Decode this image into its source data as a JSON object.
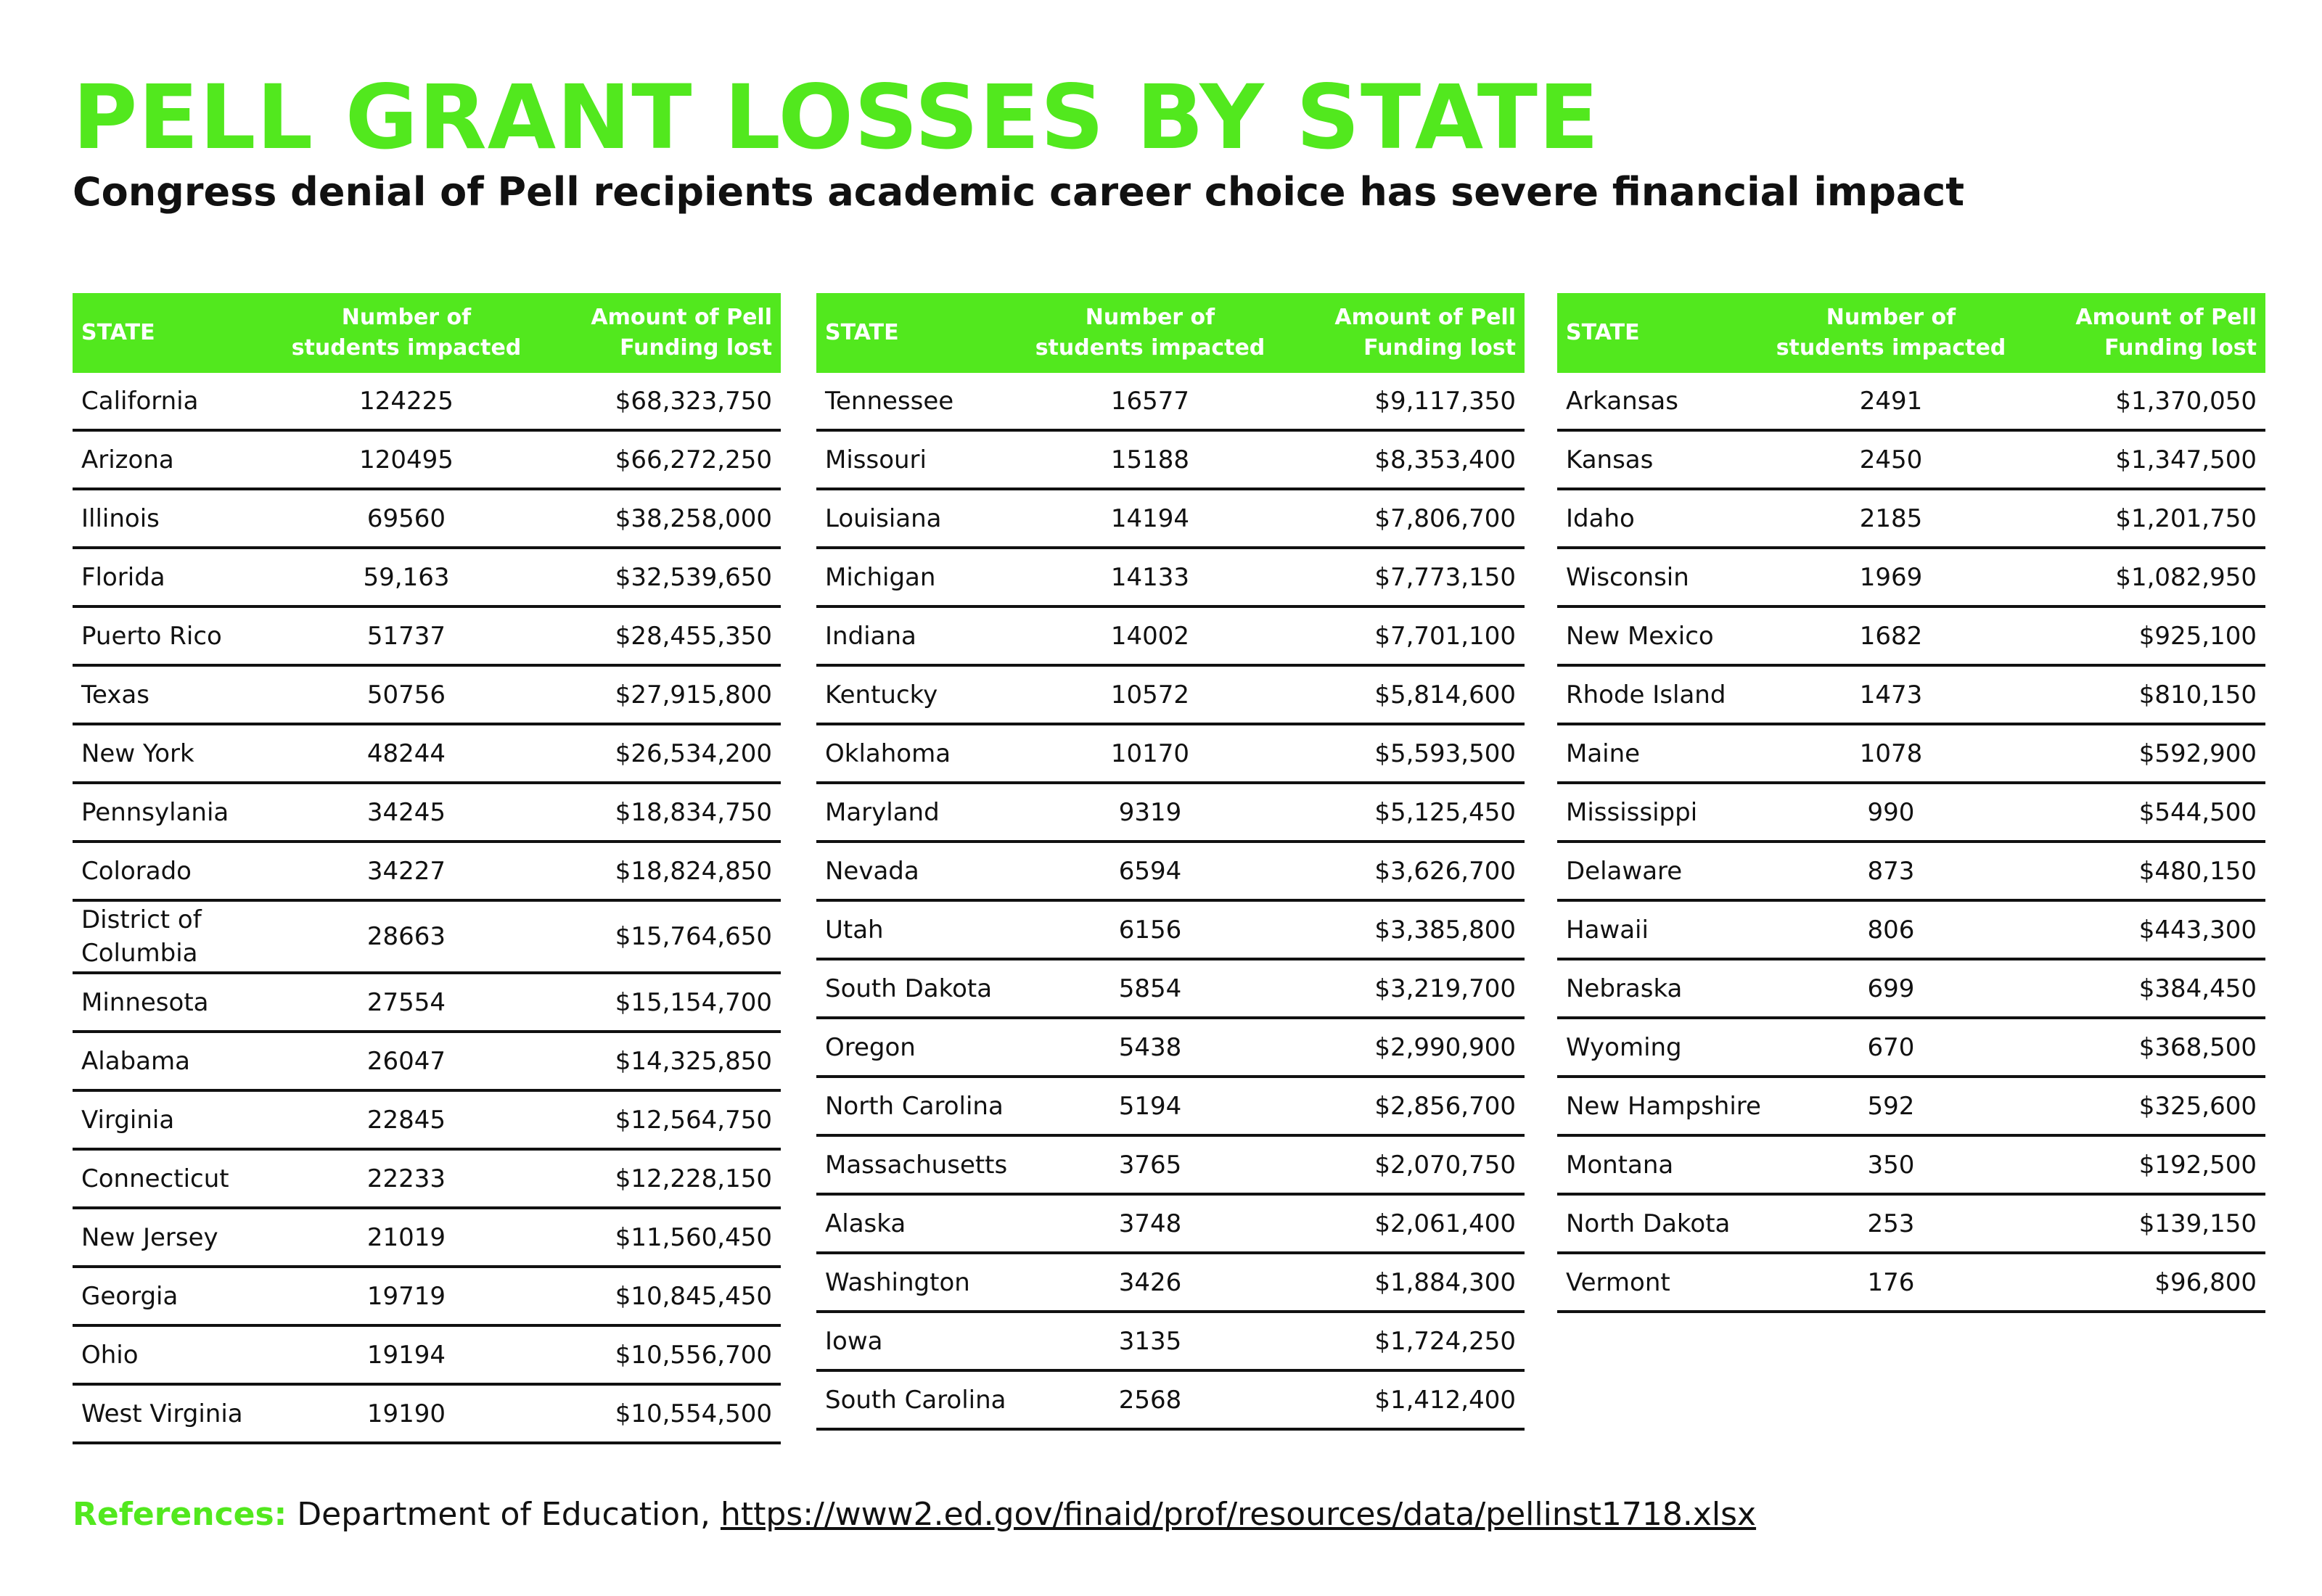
{
  "title": "PELL GRANT LOSSES BY STATE",
  "subtitle": "Congress denial of Pell recipients academic career choice has severe financial impact",
  "colors": {
    "accent": "#52e81e",
    "text": "#111111",
    "background": "#ffffff"
  },
  "table_headers": {
    "state": "STATE",
    "students": "Number of\nstudents impacted",
    "funding": "Amount of Pell\nFunding lost"
  },
  "tables": [
    {
      "rows": [
        {
          "state": "California",
          "students": "124225",
          "funding": "$68,323,750"
        },
        {
          "state": "Arizona",
          "students": "120495",
          "funding": "$66,272,250"
        },
        {
          "state": "Illinois",
          "students": "69560",
          "funding": "$38,258,000"
        },
        {
          "state": "Florida",
          "students": "59,163",
          "funding": "$32,539,650"
        },
        {
          "state": "Puerto Rico",
          "students": "51737",
          "funding": "$28,455,350"
        },
        {
          "state": "Texas",
          "students": "50756",
          "funding": "$27,915,800"
        },
        {
          "state": "New York",
          "students": "48244",
          "funding": "$26,534,200"
        },
        {
          "state": "Pennsylania",
          "students": "34245",
          "funding": "$18,834,750"
        },
        {
          "state": "Colorado",
          "students": "34227",
          "funding": "$18,824,850"
        },
        {
          "state": "District of Columbia",
          "students": "28663",
          "funding": "$15,764,650"
        },
        {
          "state": "Minnesota",
          "students": "27554",
          "funding": "$15,154,700"
        },
        {
          "state": "Alabama",
          "students": "26047",
          "funding": "$14,325,850"
        },
        {
          "state": "Virginia",
          "students": "22845",
          "funding": "$12,564,750"
        },
        {
          "state": "Connecticut",
          "students": "22233",
          "funding": "$12,228,150"
        },
        {
          "state": "New Jersey",
          "students": "21019",
          "funding": "$11,560,450"
        },
        {
          "state": "Georgia",
          "students": "19719",
          "funding": "$10,845,450"
        },
        {
          "state": "Ohio",
          "students": "19194",
          "funding": "$10,556,700"
        },
        {
          "state": "West Virginia",
          "students": "19190",
          "funding": "$10,554,500"
        }
      ]
    },
    {
      "rows": [
        {
          "state": "Tennessee",
          "students": "16577",
          "funding": "$9,117,350"
        },
        {
          "state": "Missouri",
          "students": "15188",
          "funding": "$8,353,400"
        },
        {
          "state": "Louisiana",
          "students": "14194",
          "funding": "$7,806,700"
        },
        {
          "state": "Michigan",
          "students": "14133",
          "funding": "$7,773,150"
        },
        {
          "state": "Indiana",
          "students": "14002",
          "funding": "$7,701,100"
        },
        {
          "state": "Kentucky",
          "students": "10572",
          "funding": "$5,814,600"
        },
        {
          "state": "Oklahoma",
          "students": "10170",
          "funding": "$5,593,500"
        },
        {
          "state": "Maryland",
          "students": "9319",
          "funding": "$5,125,450"
        },
        {
          "state": "Nevada",
          "students": "6594",
          "funding": "$3,626,700"
        },
        {
          "state": "Utah",
          "students": "6156",
          "funding": "$3,385,800"
        },
        {
          "state": "South Dakota",
          "students": "5854",
          "funding": "$3,219,700"
        },
        {
          "state": "Oregon",
          "students": "5438",
          "funding": "$2,990,900"
        },
        {
          "state": "North Carolina",
          "students": "5194",
          "funding": "$2,856,700"
        },
        {
          "state": "Massachusetts",
          "students": "3765",
          "funding": "$2,070,750"
        },
        {
          "state": "Alaska",
          "students": "3748",
          "funding": "$2,061,400"
        },
        {
          "state": "Washington",
          "students": "3426",
          "funding": "$1,884,300"
        },
        {
          "state": "Iowa",
          "students": "3135",
          "funding": "$1,724,250"
        },
        {
          "state": "South Carolina",
          "students": "2568",
          "funding": "$1,412,400"
        }
      ]
    },
    {
      "rows": [
        {
          "state": "Arkansas",
          "students": "2491",
          "funding": "$1,370,050"
        },
        {
          "state": "Kansas",
          "students": "2450",
          "funding": "$1,347,500"
        },
        {
          "state": "Idaho",
          "students": "2185",
          "funding": "$1,201,750"
        },
        {
          "state": "Wisconsin",
          "students": "1969",
          "funding": "$1,082,950"
        },
        {
          "state": "New Mexico",
          "students": "1682",
          "funding": "$925,100"
        },
        {
          "state": "Rhode Island",
          "students": "1473",
          "funding": "$810,150"
        },
        {
          "state": "Maine",
          "students": "1078",
          "funding": "$592,900"
        },
        {
          "state": "Mississippi",
          "students": "990",
          "funding": "$544,500"
        },
        {
          "state": "Delaware",
          "students": "873",
          "funding": "$480,150"
        },
        {
          "state": "Hawaii",
          "students": "806",
          "funding": "$443,300"
        },
        {
          "state": "Nebraska",
          "students": "699",
          "funding": "$384,450"
        },
        {
          "state": "Wyoming",
          "students": "670",
          "funding": "$368,500"
        },
        {
          "state": "New Hampshire",
          "students": "592",
          "funding": "$325,600"
        },
        {
          "state": "Montana",
          "students": "350",
          "funding": "$192,500"
        },
        {
          "state": "North Dakota",
          "students": "253",
          "funding": "$139,150"
        },
        {
          "state": "Vermont",
          "students": "176",
          "funding": "$96,800"
        }
      ]
    }
  ],
  "references": {
    "label": "References:",
    "source": "Department of Education,",
    "link": "https://www2.ed.gov/finaid/prof/resources/data/pellinst1718.xlsx"
  }
}
